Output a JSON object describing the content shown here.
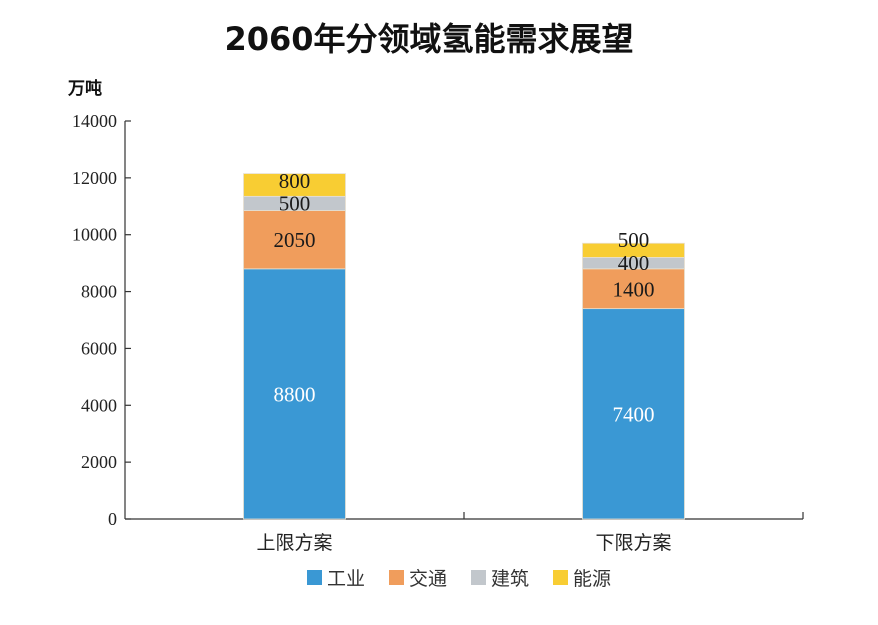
{
  "chart_data": {
    "type": "bar",
    "stacked": true,
    "title": "2060年分领域氢能需求展望",
    "ylabel": "万吨",
    "xlabel": "",
    "ylim": [
      0,
      14000
    ],
    "yticks": [
      0,
      2000,
      4000,
      6000,
      8000,
      10000,
      12000,
      14000
    ],
    "categories": [
      "上限方案",
      "下限方案"
    ],
    "series": [
      {
        "name": "工业",
        "color": "#3a98d4",
        "values": [
          8800,
          7400
        ]
      },
      {
        "name": "交通",
        "color": "#f09d5c",
        "values": [
          2050,
          1400
        ]
      },
      {
        "name": "建筑",
        "color": "#c2c7cc",
        "values": [
          500,
          400
        ]
      },
      {
        "name": "能源",
        "color": "#f8cd33",
        "values": [
          800,
          500
        ]
      }
    ],
    "legend": "bottom",
    "grid": false
  }
}
